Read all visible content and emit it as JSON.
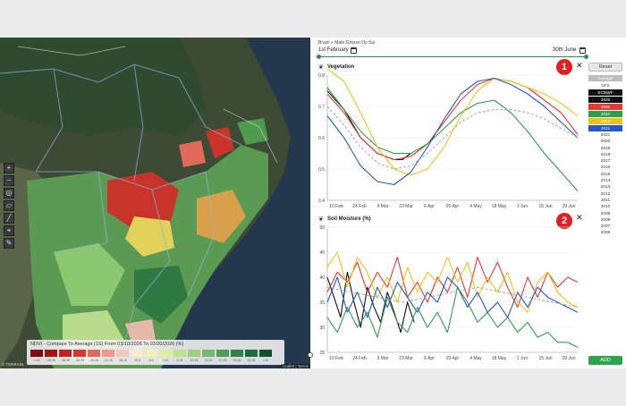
{
  "map": {
    "legend_title": "NDVI - Compare To Average (1S)   From 03/10/2026 To 03/20/2026 (%)",
    "legend_colors": [
      "#7a0c12",
      "#9e1218",
      "#c0201f",
      "#d8362c",
      "#e06a5a",
      "#ee9a8a",
      "#f4c8c0",
      "#f6ecd2",
      "#f2f2b8",
      "#dfee9c",
      "#c2e08a",
      "#9fcf7a",
      "#74b86a",
      "#4e9e58",
      "#2e8247",
      "#1b6b3a",
      "#0f4f2b"
    ],
    "legend_ticks": [
      "<-40",
      "-40-35",
      "-35-30",
      "-30-25",
      "-25-20",
      "-20-15",
      "-15-10",
      "-10-5",
      "-5-0",
      "0-5",
      "5-10",
      "10-15",
      "15-20",
      "20-25",
      "25-30",
      "30-35",
      ">40"
    ],
    "attribution": "Leaflet | Terms",
    "scale": "© TERRAIN"
  },
  "panel": {
    "breadcrumb": "Brazil > Mato Grosso Do Sul",
    "date_from": "1st February",
    "date_to": "30th June",
    "reset_label": "Reset",
    "add_label": "ADD",
    "models": [
      {
        "label": "Average",
        "bg": "#bdbdbd",
        "fg": "#ffffff"
      },
      {
        "label": "GFS",
        "bg": "#ffffff",
        "fg": "#333333"
      },
      {
        "label": "ECMWF",
        "bg": "#111111",
        "fg": "#ffffff"
      },
      {
        "label": "2026",
        "bg": "#111111",
        "fg": "#ffffff"
      },
      {
        "label": "2025",
        "bg": "#e53935",
        "fg": "#ffffff"
      },
      {
        "label": "2024",
        "bg": "#2e9e47",
        "fg": "#ffffff"
      },
      {
        "label": "2023",
        "bg": "#e8c51c",
        "fg": "#ffffff"
      },
      {
        "label": "2022",
        "bg": "#2457c9",
        "fg": "#ffffff"
      }
    ],
    "years": [
      "2021",
      "2020",
      "2019",
      "2018",
      "2017",
      "2016",
      "2015",
      "2014",
      "2013",
      "2012",
      "2011",
      "2010",
      "2009",
      "2008",
      "2007",
      "2006"
    ],
    "badges": [
      "1",
      "2"
    ]
  },
  "chart_data": [
    {
      "type": "line",
      "title": "Vegetation",
      "ylim": [
        0.4,
        0.8
      ],
      "yticks": [
        "0.8",
        "0.7",
        "0.6",
        "0.5",
        "0.4"
      ],
      "xticks": [
        "10 Feb",
        "24 Feb",
        "9 Mar",
        "23 Mar",
        "6 Apr",
        "20 Apr",
        "4 May",
        "18 May",
        "1 Jun",
        "15 Jun",
        "29 Jun"
      ],
      "series": [
        {
          "name": "2026",
          "color": "#111111",
          "x": [
            0,
            10,
            20,
            30,
            40,
            45,
            50
          ],
          "values": [
            0.75,
            0.69,
            0.6,
            0.55,
            0.53,
            0.53,
            0.55
          ]
        },
        {
          "name": "2025",
          "color": "#e53935",
          "x": [
            0,
            10,
            20,
            30,
            40,
            50,
            60,
            70,
            80,
            90,
            100,
            110,
            120,
            130,
            140,
            150
          ],
          "values": [
            0.74,
            0.68,
            0.6,
            0.55,
            0.53,
            0.54,
            0.58,
            0.65,
            0.72,
            0.77,
            0.79,
            0.78,
            0.76,
            0.72,
            0.68,
            0.61
          ]
        },
        {
          "name": "2024",
          "color": "#2e9e47",
          "x": [
            0,
            10,
            20,
            30,
            40,
            50,
            60,
            70,
            80,
            90,
            100,
            110,
            120,
            130,
            140,
            150
          ],
          "values": [
            0.76,
            0.69,
            0.62,
            0.57,
            0.55,
            0.55,
            0.58,
            0.63,
            0.68,
            0.71,
            0.72,
            0.68,
            0.62,
            0.55,
            0.49,
            0.43
          ]
        },
        {
          "name": "2023",
          "color": "#e8c51c",
          "x": [
            0,
            10,
            20,
            30,
            40,
            50,
            60,
            70,
            80,
            90,
            100,
            110,
            120,
            130,
            140,
            150
          ],
          "values": [
            0.82,
            0.78,
            0.68,
            0.57,
            0.5,
            0.48,
            0.5,
            0.57,
            0.67,
            0.75,
            0.79,
            0.78,
            0.76,
            0.74,
            0.71,
            0.67
          ]
        },
        {
          "name": "2022",
          "color": "#2457c9",
          "x": [
            0,
            10,
            20,
            30,
            40,
            50,
            60,
            70,
            80,
            90,
            100,
            110,
            120,
            130,
            140,
            150
          ],
          "values": [
            0.67,
            0.6,
            0.51,
            0.46,
            0.45,
            0.49,
            0.57,
            0.66,
            0.74,
            0.78,
            0.79,
            0.77,
            0.74,
            0.7,
            0.65,
            0.6
          ]
        },
        {
          "name": "Average",
          "color": "#aaaaaa",
          "dashed": true,
          "x": [
            0,
            10,
            20,
            30,
            40,
            50,
            60,
            70,
            80,
            90,
            100,
            110,
            120,
            130,
            140,
            150
          ],
          "values": [
            0.7,
            0.64,
            0.57,
            0.52,
            0.5,
            0.51,
            0.55,
            0.6,
            0.65,
            0.68,
            0.69,
            0.69,
            0.68,
            0.66,
            0.63,
            0.6
          ]
        }
      ]
    },
    {
      "type": "line",
      "title": "Soil Moisture (%)",
      "ylim": [
        25,
        50
      ],
      "yticks": [
        "50",
        "45",
        "40",
        "35",
        "30",
        "25"
      ],
      "xticks": [
        "10 Feb",
        "24 Feb",
        "9 Mar",
        "23 Mar",
        "6 Apr",
        "20 Apr",
        "4 May",
        "18 May",
        "1 Jun",
        "15 Jun",
        "29 Jun"
      ],
      "series": [
        {
          "name": "2026",
          "color": "#111111",
          "x": [
            0,
            4,
            8,
            12,
            16,
            20,
            24,
            28,
            32,
            36,
            40,
            44,
            48,
            52
          ],
          "values": [
            40,
            36,
            32,
            41,
            35,
            30,
            38,
            34,
            31,
            37,
            33,
            29,
            35,
            31
          ]
        },
        {
          "name": "2025",
          "color": "#e53935",
          "x": [
            0,
            6,
            12,
            18,
            24,
            30,
            36,
            42,
            48,
            54,
            60,
            66,
            72,
            78,
            84,
            90,
            96,
            102,
            108,
            114,
            120,
            126,
            132,
            138,
            144,
            150
          ],
          "values": [
            37,
            41,
            39,
            43,
            37,
            41,
            38,
            44,
            36,
            39,
            35,
            40,
            37,
            42,
            36,
            44,
            39,
            43,
            38,
            34,
            40,
            36,
            41,
            38,
            40,
            39
          ]
        },
        {
          "name": "2024",
          "color": "#2e9e47",
          "x": [
            0,
            6,
            12,
            18,
            24,
            30,
            36,
            42,
            48,
            54,
            60,
            66,
            72,
            78,
            84,
            90,
            96,
            102,
            108,
            114,
            120,
            126,
            132,
            138,
            144,
            150
          ],
          "values": [
            32,
            29,
            34,
            30,
            33,
            28,
            36,
            31,
            29,
            34,
            30,
            33,
            29,
            38,
            35,
            31,
            33,
            30,
            32,
            29,
            31,
            28,
            29,
            27,
            27,
            26
          ]
        },
        {
          "name": "2023",
          "color": "#e8c51c",
          "x": [
            0,
            6,
            12,
            18,
            24,
            30,
            36,
            42,
            48,
            54,
            60,
            66,
            72,
            78,
            84,
            90,
            96,
            102,
            108,
            114,
            120,
            126,
            132,
            138,
            144,
            150
          ],
          "values": [
            42,
            45,
            38,
            44,
            41,
            36,
            40,
            35,
            42,
            37,
            41,
            39,
            44,
            39,
            43,
            36,
            40,
            37,
            41,
            35,
            33,
            39,
            41,
            37,
            35,
            34
          ]
        },
        {
          "name": "2022",
          "color": "#2457c9",
          "x": [
            0,
            6,
            12,
            18,
            24,
            30,
            36,
            42,
            48,
            54,
            60,
            66,
            72,
            78,
            84,
            90,
            96,
            102,
            108,
            114,
            120,
            126,
            132,
            138,
            144,
            150
          ],
          "values": [
            35,
            40,
            33,
            37,
            32,
            38,
            34,
            39,
            36,
            33,
            37,
            35,
            40,
            38,
            34,
            37,
            33,
            35,
            32,
            37,
            34,
            38,
            36,
            35,
            34,
            33
          ]
        },
        {
          "name": "Average",
          "color": "#aaaaaa",
          "dashed": true,
          "x": [
            0,
            15,
            30,
            45,
            60,
            75,
            90,
            105,
            120,
            135,
            150
          ],
          "values": [
            38,
            37,
            36,
            35,
            36,
            37,
            38,
            37,
            36,
            35,
            34
          ]
        }
      ]
    }
  ]
}
